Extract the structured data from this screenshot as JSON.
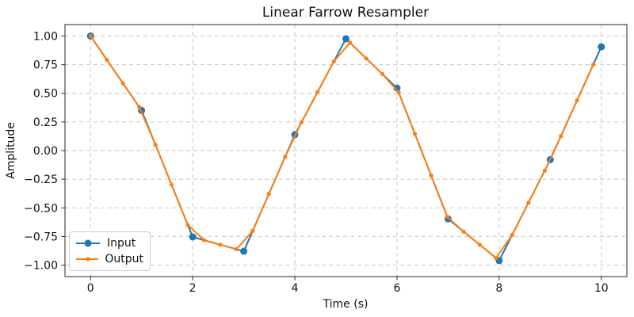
{
  "figure": {
    "background": "#ffffff",
    "plot_background": "#ffffff",
    "spine_color": "#262626",
    "grid_color": "#c7c7c7"
  },
  "chart_data": {
    "type": "line",
    "title": "Linear Farrow Resampler",
    "xlabel": "Time (s)",
    "ylabel": "Amplitude",
    "xlim": [
      -0.5,
      10.5
    ],
    "ylim": [
      -1.1,
      1.1
    ],
    "grid": true,
    "grid_style": "dashed",
    "legend_position": "lower left",
    "x_ticks": {
      "values": [
        0,
        2,
        4,
        6,
        8,
        10
      ],
      "labels": [
        "0",
        "2",
        "4",
        "6",
        "8",
        "10"
      ]
    },
    "y_ticks": {
      "values": [
        1.0,
        0.75,
        0.5,
        0.25,
        0.0,
        -0.25,
        -0.5,
        -0.75,
        -1.0
      ],
      "labels": [
        "1.00",
        "0.75",
        "0.50",
        "0.25",
        "0.00",
        "−0.25",
        "−0.50",
        "−0.75",
        "−1.00"
      ]
    },
    "series": [
      {
        "name": "Input",
        "color": "#1f77b4",
        "marker": "circle",
        "marker_radius": 4.5,
        "line_width": 2,
        "x": [
          0,
          1,
          2,
          3,
          4,
          5,
          6,
          7,
          8,
          9,
          10
        ],
        "y": [
          1.0,
          0.35,
          -0.754,
          -0.879,
          0.139,
          0.976,
          0.545,
          -0.596,
          -0.961,
          -0.079,
          0.906
        ]
      },
      {
        "name": "Output",
        "color": "#ff7f0e",
        "marker": "dot",
        "marker_radius": 2.6,
        "line_width": 2,
        "x": [
          0,
          0.318,
          0.635,
          0.953,
          1.27,
          1.588,
          1.905,
          2.223,
          2.54,
          2.858,
          3.175,
          3.493,
          3.81,
          4.128,
          4.445,
          4.763,
          5.08,
          5.398,
          5.715,
          6.033,
          6.35,
          6.668,
          6.985,
          7.303,
          7.62,
          7.938,
          8.255,
          8.573,
          8.89,
          9.208,
          9.525,
          9.843
        ],
        "y": [
          1.0,
          0.793,
          0.587,
          0.381,
          0.052,
          -0.299,
          -0.649,
          -0.782,
          -0.822,
          -0.861,
          -0.701,
          -0.377,
          -0.054,
          0.246,
          0.511,
          0.778,
          0.942,
          0.804,
          0.668,
          0.507,
          0.146,
          -0.217,
          -0.579,
          -0.707,
          -0.822,
          -0.938,
          -0.736,
          -0.456,
          -0.177,
          0.126,
          0.438,
          0.751
        ]
      }
    ]
  }
}
